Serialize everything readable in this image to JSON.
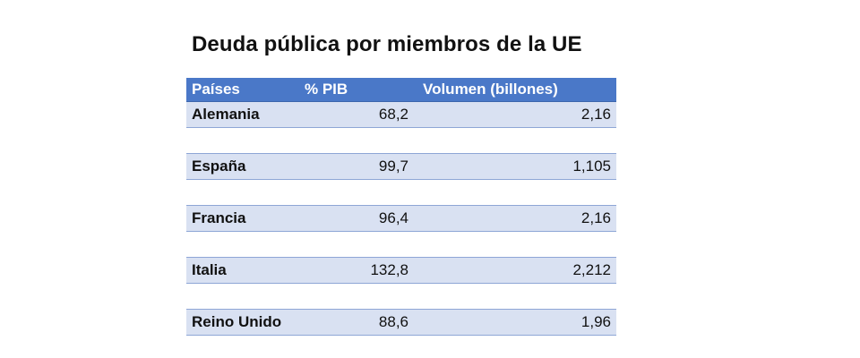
{
  "chart_data": {
    "type": "table",
    "title": "Deuda pública por miembros de la UE",
    "columns": [
      "Países",
      "% PIB",
      "Volumen (billones)"
    ],
    "rows": [
      {
        "country": "Alemania",
        "pib": "68,2",
        "volumen": "2,16"
      },
      {
        "country": "España",
        "pib": "99,7",
        "volumen": "1,105"
      },
      {
        "country": "Francia",
        "pib": "96,4",
        "volumen": "2,16"
      },
      {
        "country": "Italia",
        "pib": "132,8",
        "volumen": "2,212"
      },
      {
        "country": "Reino Unido",
        "pib": "88,6",
        "volumen": "1,96"
      }
    ]
  },
  "colors": {
    "header_bg": "#4a78c8",
    "header_text": "#ffffff",
    "band_bg": "#d9e1f2",
    "row_border": "#8ea6d6"
  }
}
